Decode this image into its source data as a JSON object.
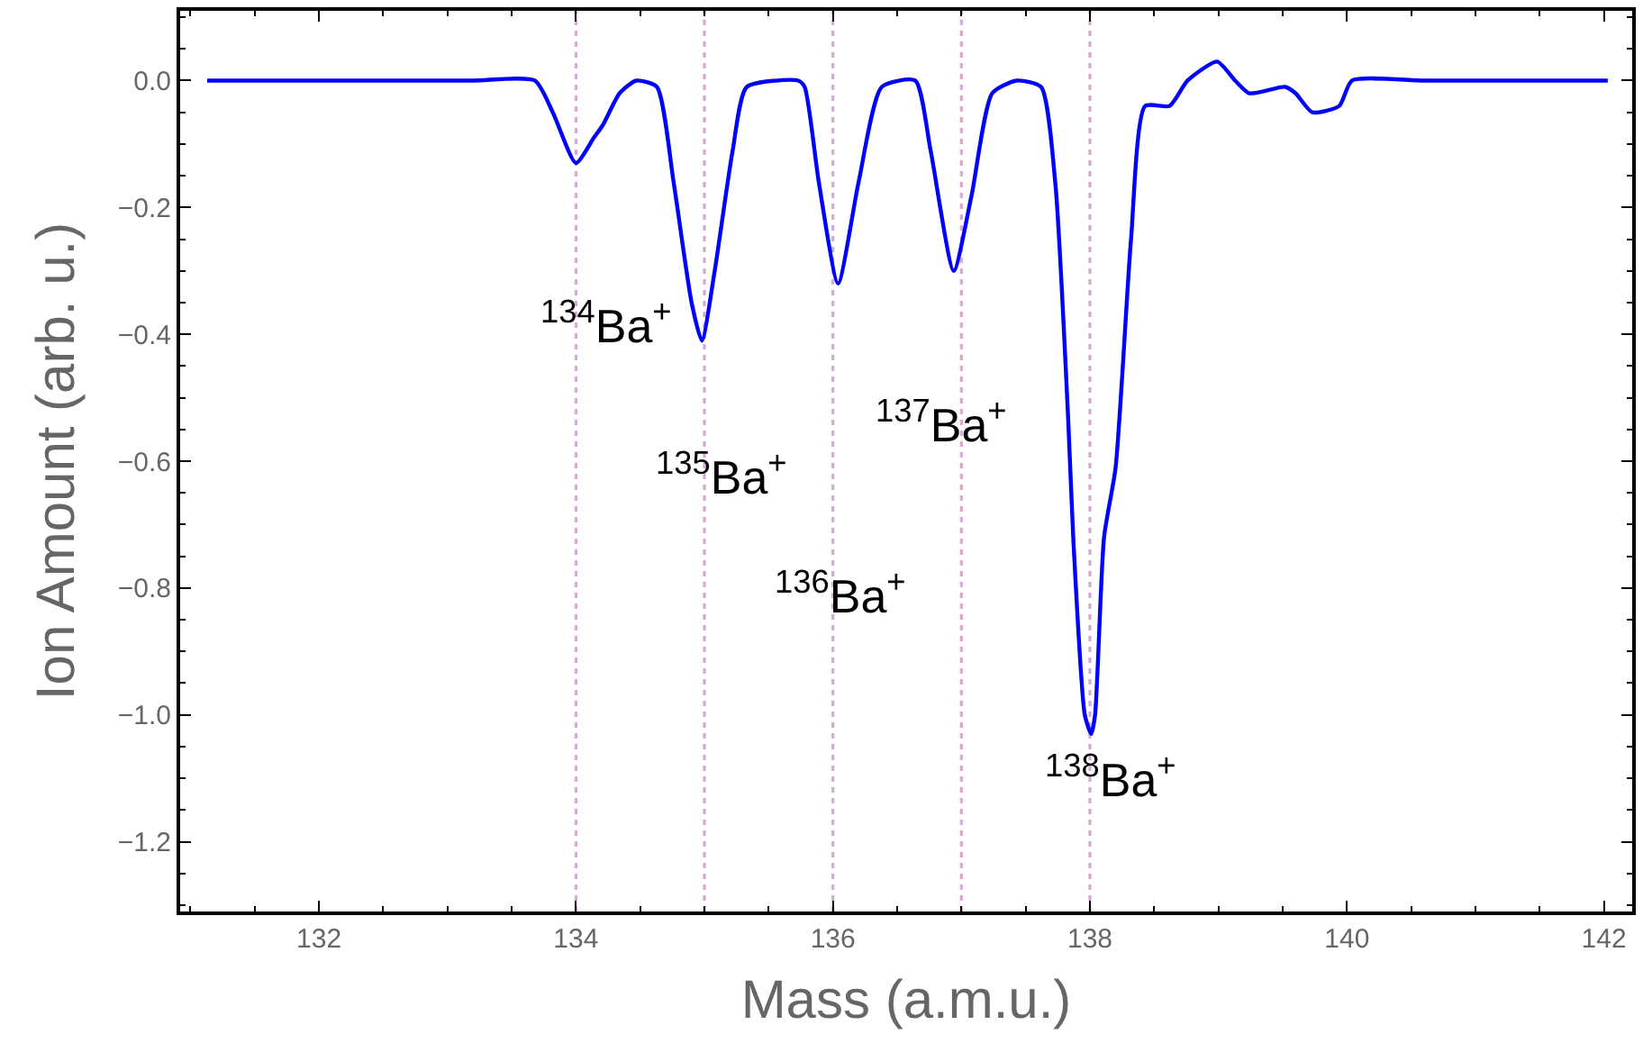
{
  "chart_data": {
    "type": "line",
    "xlabel": "Mass (a.m.u.)",
    "ylabel": "Ion Amount (arb. u.)",
    "xlim": [
      130.92,
      142.22
    ],
    "ylim": [
      -1.31,
      0.11
    ],
    "xticks": [
      132,
      134,
      136,
      138,
      140,
      142
    ],
    "yticks": [
      {
        "value": 0,
        "label": "0.0"
      },
      {
        "value": -0.2,
        "label": "−0.2"
      },
      {
        "value": -0.4,
        "label": "−0.4"
      },
      {
        "value": -0.6,
        "label": "−0.6"
      },
      {
        "value": -0.8,
        "label": "−0.8"
      },
      {
        "value": -1.0,
        "label": "−1.0"
      },
      {
        "value": -1.2,
        "label": "−1.2"
      }
    ],
    "grid": false,
    "marker": "none",
    "line_style": "solid",
    "series": [
      {
        "color": "#0000ff",
        "x": [
          131.13,
          131.8,
          132.5,
          133.2,
          133.68,
          133.82,
          134.0,
          134.14,
          134.21,
          134.34,
          134.47,
          134.63,
          134.76,
          134.9,
          134.98,
          135.08,
          135.22,
          135.33,
          135.73,
          135.78,
          135.89,
          136.04,
          136.2,
          136.38,
          136.64,
          136.76,
          136.94,
          137.08,
          137.24,
          137.43,
          137.62,
          137.73,
          137.83,
          137.87,
          137.96,
          138.01,
          138.04,
          138.11,
          138.2,
          138.32,
          138.43,
          138.62,
          138.76,
          138.99,
          139.13,
          139.24,
          139.52,
          139.6,
          139.73,
          139.94,
          140.04,
          140.6,
          141.2,
          141.6,
          142.03
        ],
        "values": [
          0.0,
          0.0,
          0.0,
          0.0,
          0.0,
          -0.05,
          -0.13,
          -0.09,
          -0.07,
          -0.02,
          0.0,
          -0.01,
          -0.16,
          -0.35,
          -0.41,
          -0.3,
          -0.11,
          -0.01,
          0.0,
          -0.01,
          -0.16,
          -0.32,
          -0.16,
          -0.01,
          0.0,
          -0.11,
          -0.3,
          -0.18,
          -0.02,
          0.0,
          -0.01,
          -0.16,
          -0.53,
          -0.72,
          -1.0,
          -1.03,
          -1.0,
          -0.72,
          -0.61,
          -0.25,
          -0.04,
          -0.04,
          0.0,
          0.03,
          0.0,
          -0.02,
          -0.01,
          -0.02,
          -0.05,
          -0.04,
          0.0,
          0.0,
          0.0,
          0.0,
          0.0
        ]
      }
    ],
    "ref_lines": [
      {
        "axis": "x",
        "value": 134,
        "color": "#d8a8d8",
        "line_style": "dotted",
        "label": "$^{134}$Ba$^{+}$"
      },
      {
        "axis": "x",
        "value": 135,
        "color": "#d8a8d8",
        "line_style": "dotted",
        "label": "$^{135}$Ba$^{+}$"
      },
      {
        "axis": "x",
        "value": 136,
        "color": "#d8a8d8",
        "line_style": "dotted",
        "label": "$^{136}$Ba$^{+}$"
      },
      {
        "axis": "x",
        "value": 137,
        "color": "#d8a8d8",
        "line_style": "dotted",
        "label": "$^{137}$Ba$^{+}$"
      },
      {
        "axis": "x",
        "value": 138,
        "color": "#d8a8d8",
        "line_style": "dotted",
        "label": "$^{138}$Ba$^{+}$"
      }
    ]
  }
}
